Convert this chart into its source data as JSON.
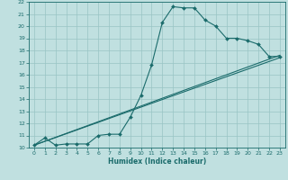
{
  "xlabel": "Humidex (Indice chaleur)",
  "ylabel": "",
  "xlim": [
    -0.5,
    23.5
  ],
  "ylim": [
    10,
    22
  ],
  "xticks": [
    0,
    1,
    2,
    3,
    4,
    5,
    6,
    7,
    8,
    9,
    10,
    11,
    12,
    13,
    14,
    15,
    16,
    17,
    18,
    19,
    20,
    21,
    22,
    23
  ],
  "yticks": [
    10,
    11,
    12,
    13,
    14,
    15,
    16,
    17,
    18,
    19,
    20,
    21,
    22
  ],
  "bg_color": "#c0e0e0",
  "line_color": "#1a6b6b",
  "grid_color": "#99c4c4",
  "line1_x": [
    0,
    1,
    2,
    3,
    4,
    5,
    6,
    7,
    8,
    9,
    10,
    11,
    12,
    13,
    14,
    15,
    16,
    17,
    18,
    19,
    20,
    21,
    22,
    23
  ],
  "line1_y": [
    10.2,
    10.8,
    10.2,
    10.3,
    10.3,
    10.3,
    11.0,
    11.1,
    11.1,
    12.5,
    14.3,
    16.8,
    20.3,
    21.6,
    21.5,
    21.5,
    20.5,
    20.0,
    19.0,
    19.0,
    18.8,
    18.5,
    17.5,
    17.5
  ],
  "line2_x": [
    0,
    23
  ],
  "line2_y": [
    10.2,
    17.4
  ],
  "line3_x": [
    0,
    23
  ],
  "line3_y": [
    10.2,
    17.6
  ],
  "marker_x": [
    0,
    1,
    2,
    3,
    4,
    5,
    6,
    7,
    8,
    9,
    10,
    11,
    12,
    13,
    14,
    15,
    16,
    17,
    18,
    19,
    20,
    21,
    22,
    23
  ],
  "marker_y": [
    10.2,
    10.8,
    10.2,
    10.3,
    10.3,
    10.3,
    11.0,
    11.1,
    11.1,
    12.5,
    14.3,
    16.8,
    20.3,
    21.6,
    21.5,
    21.5,
    20.5,
    20.0,
    19.0,
    19.0,
    18.8,
    18.5,
    17.5,
    17.5
  ]
}
